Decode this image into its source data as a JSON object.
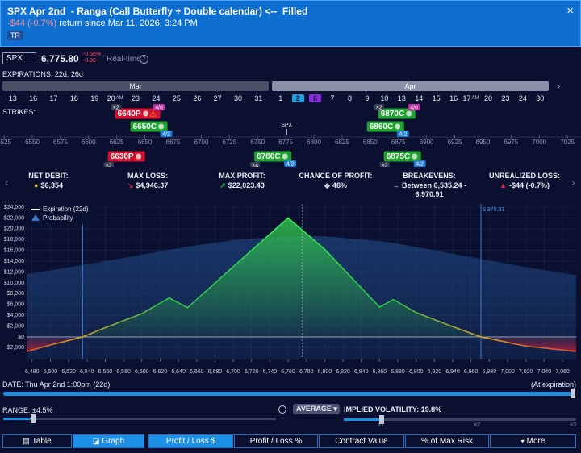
{
  "header": {
    "title": "SPX Apr 2nd  - Ranga (Call Butterfly + Double calendar) <--  Filled",
    "return": "-$44 (-0.7%)",
    "return_note": "return since Mar 11, 2026, 3:24 PM",
    "tag": "TR",
    "close": "×"
  },
  "quote": {
    "symbol": "SPX",
    "price": "6,775.80",
    "change_pct": "-0.56%",
    "change": "-0.88",
    "mode": "Real-time",
    "info": "?"
  },
  "expirations": {
    "label": "EXPIRATIONS: 22d, 26d",
    "months": [
      "Mar",
      "Apr"
    ],
    "dates": [
      [
        {
          "label": "13"
        },
        {
          "label": "16"
        },
        {
          "label": "17"
        },
        {
          "label": "18"
        },
        {
          "label": "19"
        },
        {
          "label": "20",
          "tag": "AM"
        },
        {
          "label": "23"
        },
        {
          "label": "24"
        },
        {
          "label": "25"
        },
        {
          "label": "26"
        },
        {
          "label": "27"
        },
        {
          "label": "30"
        },
        {
          "label": "31"
        }
      ],
      [
        {
          "label": "1"
        },
        {
          "label": "2",
          "selected": true,
          "color": "#1fa0e0"
        },
        {
          "label": "6",
          "selected": true,
          "color": "#8a2be2"
        },
        {
          "label": "7"
        },
        {
          "label": "8"
        },
        {
          "label": "9"
        },
        {
          "label": "10"
        },
        {
          "label": "13"
        },
        {
          "label": "14"
        },
        {
          "label": "15"
        },
        {
          "label": "16"
        },
        {
          "label": "17",
          "tag": "AM"
        },
        {
          "label": "20"
        },
        {
          "label": "23"
        },
        {
          "label": "24"
        },
        {
          "label": "30"
        }
      ]
    ]
  },
  "strikes": {
    "label": "STRIKES:",
    "spot_label": "SPX",
    "spot": 6775.8,
    "ticks": [
      6525,
      6550,
      6575,
      6600,
      6625,
      6650,
      6675,
      6700,
      6725,
      6750,
      6775,
      6800,
      6825,
      6850,
      6875,
      6900,
      6925,
      6950,
      6975,
      7000,
      7025
    ],
    "legs_above": [
      {
        "strike": 6640,
        "label": "6640P",
        "color": "#d3112e",
        "qty": "×2",
        "badge": "4/6",
        "badge_color": "#c02fa8",
        "warning": "⚠"
      },
      {
        "strike": 6650,
        "label": "6650C",
        "color": "#1fa32f",
        "badge": "4/2",
        "badge_color": "#1f7bd6"
      },
      {
        "strike": 6870,
        "label": "6870C",
        "color": "#1fa32f",
        "qty": "×2",
        "badge": "4/6",
        "badge_color": "#c02fa8"
      },
      {
        "strike": 6860,
        "label": "6860C",
        "color": "#1fa32f",
        "badge": "4/2",
        "badge_color": "#1f7bd6"
      }
    ],
    "legs_below": [
      {
        "strike": 6630,
        "label": "6630P",
        "color": "#d3112e",
        "qty": "×2"
      },
      {
        "strike": 6760,
        "label": "6760C",
        "color": "#1fa32f",
        "qty": "×4",
        "badge": "4/2",
        "badge_color": "#1f7bd6"
      },
      {
        "strike": 6875,
        "label": "6875C",
        "color": "#1fa32f",
        "qty": "×2",
        "badge": "4/2",
        "badge_color": "#1f7bd6"
      }
    ]
  },
  "stats": [
    {
      "label": "NET DEBIT:",
      "value": "$6,354",
      "icon": "●",
      "icon_color": "#e0b030"
    },
    {
      "label": "MAX LOSS:",
      "value": "$4,946.37",
      "icon": "↘",
      "icon_color": "#e0243c"
    },
    {
      "label": "MAX PROFIT:",
      "value": "$22,023.43",
      "icon": "↗",
      "icon_color": "#2ec04a"
    },
    {
      "label": "CHANCE OF PROFIT:",
      "value": "48%",
      "icon": "◆",
      "icon_color": "#c8ccd8"
    },
    {
      "label": "BREAKEVENS:",
      "value": "Between 6,535.24 - 6,970.91",
      "icon": "→",
      "icon_color": "#c8ccd8"
    },
    {
      "label": "UNREALIZED LOSS:",
      "value": "-$44 (-0.7%)",
      "icon": "▲",
      "icon_color": "#e0243c"
    }
  ],
  "chart_data": {
    "type": "line",
    "grid": true,
    "xlim": [
      6474,
      7075
    ],
    "ylim": [
      -4180,
      24600
    ],
    "xticks": [
      {
        "value": 6480,
        "label": "6,480"
      },
      {
        "value": 6500,
        "label": "6,500"
      },
      {
        "value": 6520,
        "label": "6,520"
      },
      {
        "value": 6540,
        "label": "6,540"
      },
      {
        "value": 6560,
        "label": "6,560"
      },
      {
        "value": 6580,
        "label": "6,580"
      },
      {
        "value": 6600,
        "label": "6,600"
      },
      {
        "value": 6620,
        "label": "6,620"
      },
      {
        "value": 6640,
        "label": "6,640"
      },
      {
        "value": 6660,
        "label": "6,660"
      },
      {
        "value": 6680,
        "label": "6,680"
      },
      {
        "value": 6700,
        "label": "6,700"
      },
      {
        "value": 6720,
        "label": "6,720"
      },
      {
        "value": 6740,
        "label": "6,740"
      },
      {
        "value": 6760,
        "label": "6,760"
      },
      {
        "value": 6780,
        "label": "6,780"
      },
      {
        "value": 6800,
        "label": "6,800"
      },
      {
        "value": 6820,
        "label": "6,820"
      },
      {
        "value": 6840,
        "label": "6,840"
      },
      {
        "value": 6860,
        "label": "6,860"
      },
      {
        "value": 6880,
        "label": "6,880"
      },
      {
        "value": 6900,
        "label": "6,900"
      },
      {
        "value": 6920,
        "label": "6,920"
      },
      {
        "value": 6940,
        "label": "6,940"
      },
      {
        "value": 6960,
        "label": "6,960"
      },
      {
        "value": 6980,
        "label": "6,980"
      },
      {
        "value": 7000,
        "label": "7,000"
      },
      {
        "value": 7020,
        "label": "7,020"
      },
      {
        "value": 7040,
        "label": "7,040"
      },
      {
        "value": 7060,
        "label": "7,060"
      }
    ],
    "yticks": [
      {
        "value": 24000,
        "label": "$24,000"
      },
      {
        "value": 22000,
        "label": "$22,000"
      },
      {
        "value": 20000,
        "label": "$20,000"
      },
      {
        "value": 18000,
        "label": "$18,000"
      },
      {
        "value": 16000,
        "label": "$16,000"
      },
      {
        "value": 14000,
        "label": "$14,000"
      },
      {
        "value": 12000,
        "label": "$12,000"
      },
      {
        "value": 10000,
        "label": "$10,000"
      },
      {
        "value": 8000,
        "label": "$8,000"
      },
      {
        "value": 6000,
        "label": "$6,000"
      },
      {
        "value": 4000,
        "label": "$4,000"
      },
      {
        "value": 2000,
        "label": "$2,000"
      },
      {
        "value": 0,
        "label": "$0"
      },
      {
        "value": -2000,
        "label": "-$2,000"
      }
    ],
    "x": [
      6474,
      6500,
      6535.24,
      6560,
      6600,
      6630,
      6650,
      6700,
      6760,
      6800,
      6860,
      6875,
      6900,
      6940,
      6970.91,
      7020,
      7075
    ],
    "series": [
      {
        "name": "Expiration (22d)",
        "color": "#2ec04a",
        "negative_color": "#e0243c",
        "values": [
          -2700,
          -1500,
          0,
          1700,
          4300,
          7200,
          5400,
          13000,
          22000,
          16200,
          5500,
          6900,
          4500,
          1900,
          0,
          -1700,
          -2700
        ]
      },
      {
        "name": "Probability",
        "color": "#1f4a86",
        "values": [
          11600,
          12300,
          13300,
          14000,
          15200,
          16100,
          16700,
          17900,
          18700,
          18600,
          17700,
          17400,
          16600,
          15400,
          14400,
          12900,
          11400
        ]
      }
    ],
    "vlines": [
      {
        "value": 6535.24
      },
      {
        "value": 6970.91,
        "label": "6,970.91"
      }
    ],
    "spot": 6775.8
  },
  "controls": {
    "date_label": "DATE: Thu Apr 2nd 1:00pm (22d)",
    "date_end": "(At expiration)",
    "range": "RANGE: ±4.5%",
    "average": "AVERAGE",
    "iv": "IMPLIED VOLATILITY: 19.8%",
    "iv_marks": [
      "×1",
      "×2",
      "×3"
    ]
  },
  "tabs": {
    "view": [
      "Table",
      "Graph"
    ],
    "view_active": 1,
    "metrics": [
      "Profit / Loss $",
      "Profit / Loss %",
      "Contract Value",
      "% of Max Risk",
      "More"
    ],
    "metric_active": 0
  }
}
